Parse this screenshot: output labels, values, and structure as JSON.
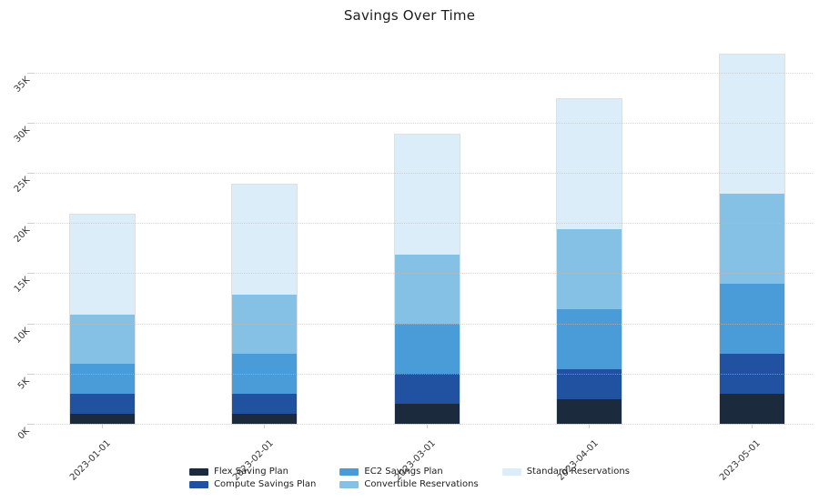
{
  "title": "Savings Over Time",
  "chart_data": {
    "type": "bar",
    "stacked": true,
    "title": "Savings Over Time",
    "xlabel": "",
    "ylabel": "",
    "categories": [
      "2023-01-01",
      "2023-02-01",
      "2023-03-01",
      "2023-04-01",
      "2023-05-01"
    ],
    "series": [
      {
        "name": "Flex Saving Plan",
        "color": "#1b2a3d",
        "values": [
          1000,
          1000,
          2000,
          2500,
          3000
        ]
      },
      {
        "name": "Compute Savings Plan",
        "color": "#2152a1",
        "values": [
          2000,
          2000,
          3000,
          3000,
          4000
        ]
      },
      {
        "name": "EC2 Savings Plan",
        "color": "#499cd8",
        "values": [
          3000,
          4000,
          5000,
          6000,
          7000
        ]
      },
      {
        "name": "Convertible Reservations",
        "color": "#85c1e4",
        "values": [
          5000,
          6000,
          7000,
          8000,
          9000
        ]
      },
      {
        "name": "Standard Reservations",
        "color": "#dbedf9",
        "values": [
          10000,
          11000,
          12000,
          13000,
          14000
        ]
      }
    ],
    "stack_totals": [
      21000,
      24000,
      29000,
      32500,
      37000
    ],
    "ylim": [
      0,
      35000
    ],
    "ytick_labels": [
      "0K",
      "5K",
      "10K",
      "15K",
      "20K",
      "25K",
      "30K",
      "35K"
    ],
    "tick_rotation_degrees": 45,
    "grid": true,
    "gridline_style": "dotted",
    "legend_position": "bottom",
    "legend_columns": [
      [
        "Flex Saving Plan",
        "Compute Savings Plan"
      ],
      [
        "EC2 Savings Plan",
        "Convertible Reservations"
      ],
      [
        "Standard Reservations"
      ]
    ],
    "colors": {
      "background": "#ffffff",
      "gridline": "#dcdcdc",
      "tick_label": "#333333",
      "title_text": "#1c1c1c"
    }
  }
}
